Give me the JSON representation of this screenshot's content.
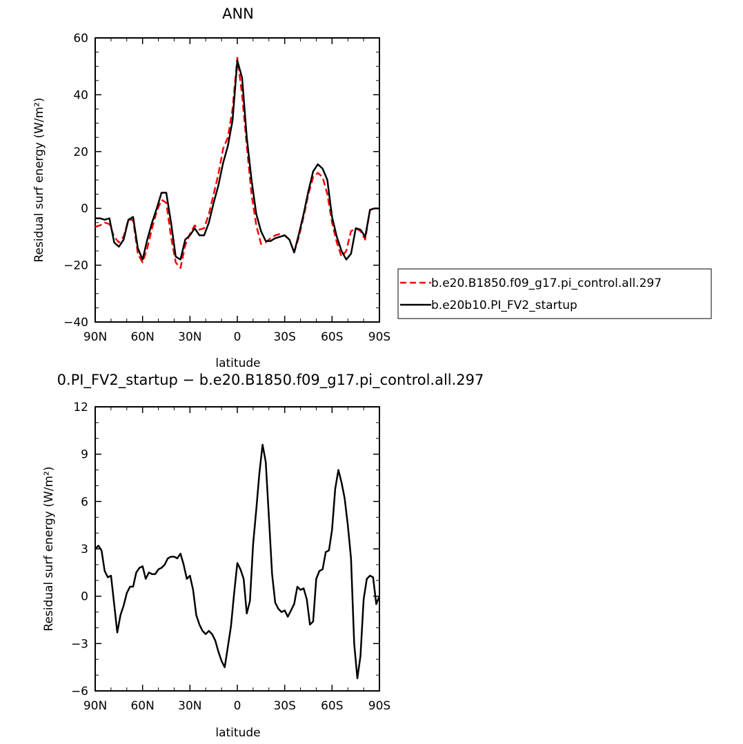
{
  "chart_data": [
    {
      "type": "line",
      "title": "ANN",
      "xlabel": "latitude",
      "ylabel": "Residual surf energy (W/m²)",
      "xlim": [
        -90,
        90
      ],
      "ylim": [
        -40,
        60
      ],
      "x_reversed": true,
      "xticks": [
        {
          "value": 90,
          "label": "90N"
        },
        {
          "value": 60,
          "label": "60N"
        },
        {
          "value": 30,
          "label": "30N"
        },
        {
          "value": 0,
          "label": "0"
        },
        {
          "value": -30,
          "label": "30S"
        },
        {
          "value": -60,
          "label": "60S"
        },
        {
          "value": -90,
          "label": "90S"
        }
      ],
      "yticks": [
        -40,
        -20,
        0,
        20,
        40,
        60
      ],
      "grid": false,
      "legend_position": "right-middle, outside",
      "series": [
        {
          "name": "b.e20.B1850.f09_g17.pi_control.all.297",
          "color": "#ff0000",
          "dash": "dashed",
          "x": [
            90,
            87,
            84,
            81,
            78,
            75,
            72,
            69,
            66,
            63,
            60,
            57,
            54,
            51,
            48,
            45,
            42,
            39,
            36,
            33,
            30,
            27,
            24,
            21,
            18,
            15,
            12,
            9,
            6,
            3,
            0,
            -3,
            -6,
            -9,
            -12,
            -15,
            -18,
            -21,
            -24,
            -27,
            -30,
            -33,
            -36,
            -39,
            -42,
            -45,
            -48,
            -51,
            -54,
            -57,
            -60,
            -63,
            -66,
            -69,
            -72,
            -75,
            -78,
            -81,
            -84,
            -87,
            -90
          ],
          "y": [
            -6.5,
            -6,
            -5,
            -5.5,
            -10,
            -12,
            -10,
            -4,
            -4,
            -16,
            -19,
            -14,
            -7,
            -1,
            3,
            2,
            -10,
            -19,
            -21,
            -13,
            -9,
            -6,
            -7.5,
            -7,
            -2,
            5,
            12,
            21,
            25,
            35,
            53,
            40,
            22,
            5,
            -6,
            -12.5,
            -12,
            -10.5,
            -9.5,
            -9,
            -9.5,
            -11,
            -15.5,
            -10,
            -3,
            5,
            11,
            12.5,
            11,
            5,
            -5,
            -12,
            -17,
            -15,
            -8,
            -7,
            -8,
            -11,
            -0.5,
            0,
            0
          ]
        },
        {
          "name": "b.e20b10.PI_FV2_startup",
          "color": "#000000",
          "dash": "solid",
          "x": [
            90,
            87,
            84,
            81,
            78,
            75,
            72,
            69,
            66,
            63,
            60,
            57,
            54,
            51,
            48,
            45,
            42,
            39,
            36,
            33,
            30,
            27,
            24,
            21,
            18,
            15,
            12,
            9,
            6,
            3,
            0,
            -3,
            -6,
            -9,
            -12,
            -15,
            -18,
            -21,
            -24,
            -27,
            -30,
            -33,
            -36,
            -39,
            -42,
            -45,
            -48,
            -51,
            -54,
            -57,
            -60,
            -63,
            -66,
            -69,
            -72,
            -75,
            -78,
            -81,
            -84,
            -87,
            -90
          ],
          "y": [
            -3.5,
            -3.5,
            -4,
            -3.5,
            -12,
            -13.5,
            -11,
            -4,
            -3,
            -14,
            -18,
            -11,
            -5,
            0,
            5.5,
            5.5,
            -5,
            -17,
            -18,
            -11,
            -9.5,
            -7,
            -9.5,
            -9.5,
            -5,
            2,
            8,
            16,
            22,
            31,
            52,
            46,
            25,
            10,
            -2,
            -8,
            -11.5,
            -11.5,
            -10.5,
            -10,
            -9.5,
            -11,
            -15.5,
            -9,
            -2,
            6,
            13,
            15.5,
            14,
            10,
            -3,
            -10,
            -15,
            -18,
            -16,
            -7,
            -7.5,
            -10,
            -0.5,
            0,
            0
          ]
        }
      ]
    },
    {
      "type": "line",
      "title": "0.PI_FV2_startup − b.e20.B1850.f09_g17.pi_control.all.297",
      "xlabel": "latitude",
      "ylabel": "Residual surf energy (W/m²)",
      "xlim": [
        -90,
        90
      ],
      "ylim": [
        -6,
        12
      ],
      "x_reversed": true,
      "xticks": [
        {
          "value": 90,
          "label": "90N"
        },
        {
          "value": 60,
          "label": "60N"
        },
        {
          "value": 30,
          "label": "30N"
        },
        {
          "value": 0,
          "label": "0"
        },
        {
          "value": -30,
          "label": "30S"
        },
        {
          "value": -60,
          "label": "60S"
        },
        {
          "value": -90,
          "label": "90S"
        }
      ],
      "yticks": [
        -6,
        -3,
        0,
        3,
        6,
        9,
        12
      ],
      "grid": false,
      "series": [
        {
          "color": "#000000",
          "dash": "solid",
          "x": [
            90,
            88,
            86,
            84,
            82,
            80,
            78,
            76,
            74,
            72,
            70,
            68,
            66,
            64,
            62,
            60,
            58,
            56,
            54,
            52,
            50,
            48,
            46,
            44,
            42,
            40,
            38,
            36,
            34,
            32,
            30,
            28,
            26,
            24,
            22,
            20,
            18,
            16,
            14,
            12,
            10,
            8,
            6,
            4,
            2,
            0,
            -2,
            -4,
            -6,
            -8,
            -10,
            -12,
            -14,
            -16,
            -18,
            -20,
            -22,
            -24,
            -26,
            -28,
            -30,
            -32,
            -34,
            -36,
            -38,
            -40,
            -42,
            -44,
            -46,
            -48,
            -50,
            -52,
            -54,
            -56,
            -58,
            -60,
            -62,
            -64,
            -66,
            -68,
            -70,
            -72,
            -74,
            -76,
            -78,
            -80,
            -82,
            -84,
            -86,
            -88,
            -90
          ],
          "y": [
            3.0,
            3.2,
            2.9,
            1.6,
            1.2,
            1.3,
            -0.5,
            -2.3,
            -1.2,
            -0.6,
            0.2,
            0.6,
            0.6,
            1.5,
            1.8,
            1.9,
            1.1,
            1.5,
            1.4,
            1.4,
            1.7,
            1.8,
            2.0,
            2.4,
            2.5,
            2.5,
            2.4,
            2.7,
            2.0,
            1.1,
            1.3,
            0.4,
            -1.2,
            -1.8,
            -2.2,
            -2.4,
            -2.2,
            -2.4,
            -2.8,
            -3.5,
            -4.1,
            -4.5,
            -3.2,
            -1.9,
            0.2,
            2.1,
            1.7,
            1.1,
            -1.1,
            -0.3,
            3.3,
            5.5,
            7.8,
            9.6,
            8.5,
            5.0,
            1.4,
            -0.4,
            -0.8,
            -1.0,
            -0.9,
            -1.3,
            -0.9,
            -0.5,
            0.6,
            0.4,
            0.5,
            -0.2,
            -1.8,
            -1.6,
            1.1,
            1.6,
            1.7,
            2.8,
            2.9,
            4.2,
            6.8,
            8.0,
            7.2,
            6.2,
            4.5,
            2.4,
            -3.0,
            -5.2,
            -3.8,
            -0.2,
            1.1,
            1.3,
            1.2,
            -0.5,
            0.0
          ]
        }
      ]
    }
  ]
}
